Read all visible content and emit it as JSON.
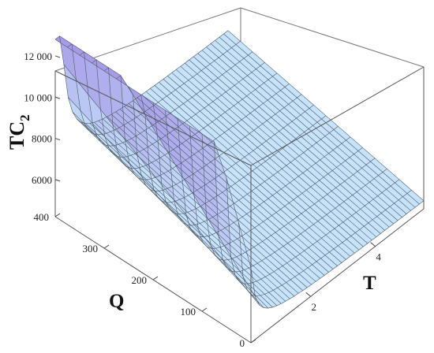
{
  "chart_data": {
    "type": "surface3d",
    "title": "",
    "zlabel": "TC",
    "zlabel_subscript": "2",
    "xlabel": "T",
    "ylabel": "Q",
    "x_ticks": [
      "2",
      "4"
    ],
    "y_ticks": [
      "0",
      "100",
      "200",
      "300",
      "400"
    ],
    "z_ticks": [
      "6000",
      "8000",
      "10 000",
      "12 000"
    ],
    "xlim": [
      0.15,
      5.5
    ],
    "ylim": [
      0,
      400
    ],
    "zlim": [
      4200,
      12800
    ],
    "surface_samples": {
      "T": [
        0.15,
        0.3,
        0.5,
        0.75,
        1.0,
        1.5,
        2.0,
        3.0,
        4.0,
        5.0,
        5.5
      ],
      "Q": [
        0,
        100,
        200,
        300,
        400
      ],
      "TC2_at_Q0": [
        12800,
        8400,
        6300,
        5500,
        5200,
        4900,
        4750,
        4650,
        4600,
        4550,
        4550
      ],
      "TC2_at_Q400": [
        12800,
        11500,
        9200,
        8000,
        7400,
        7000,
        6800,
        6700,
        6650,
        6600,
        6600
      ]
    },
    "colors": {
      "surface_light": "#c7e3fb",
      "surface_high": "#a79be8",
      "mesh": "#4d5a66"
    },
    "grid": false,
    "box": true
  }
}
